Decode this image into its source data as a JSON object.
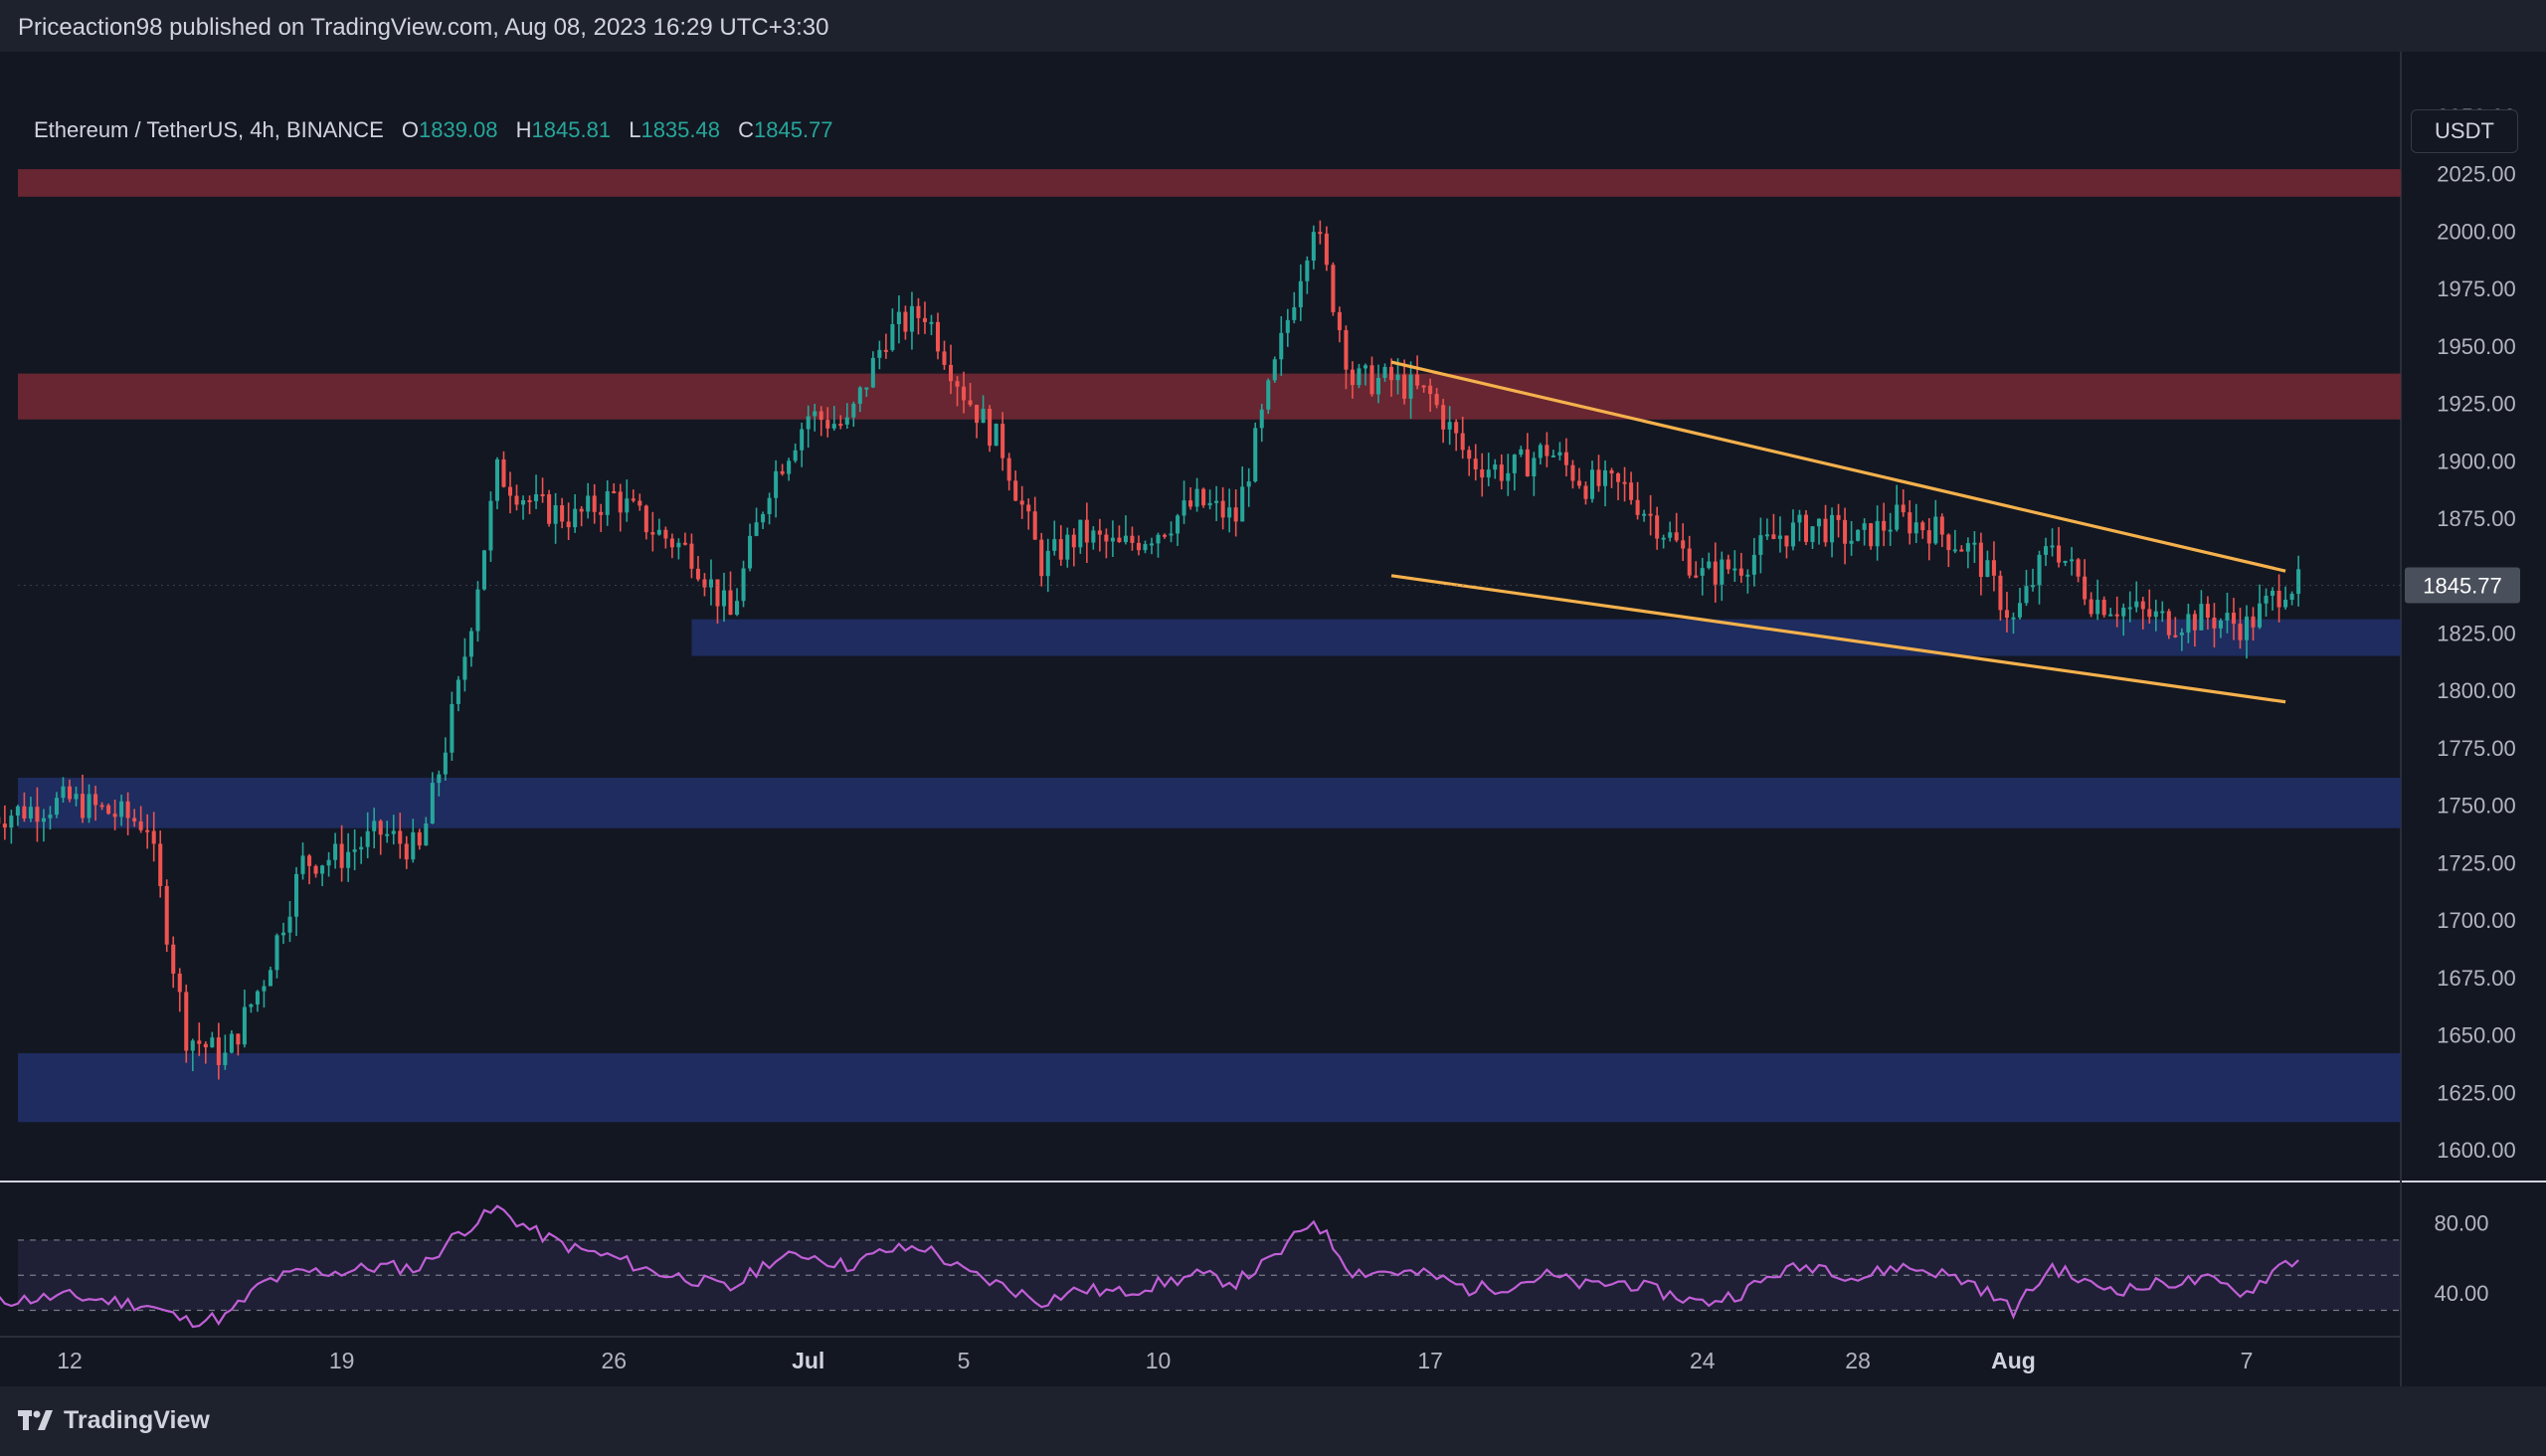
{
  "header": {
    "publish_text": "Priceaction98 published on TradingView.com, Aug 08, 2023 16:29 UTC+3:30"
  },
  "legend": {
    "symbol": "Ethereum / TetherUS, 4h, BINANCE",
    "open_label": "O",
    "open": "1839.08",
    "high_label": "H",
    "high": "1845.81",
    "low_label": "L",
    "low": "1835.48",
    "close_label": "C",
    "close": "1845.77"
  },
  "currency_button": "USDT",
  "footer": {
    "logo_text": "TradingView"
  },
  "colors": {
    "background": "#131722",
    "up": "#26a69a",
    "down": "#ef5350",
    "resistance_zone": "#6b2733",
    "support_zone": "#1f2d63",
    "channel_line": "#f5b14c",
    "rsi_line": "#c05fd6",
    "price_tag_bg": "#4a4f5c"
  },
  "chart_data": [
    {
      "type": "candlestick",
      "x_tick_labels": [
        "12",
        "19",
        "26",
        "Jul",
        "5",
        "10",
        "17",
        "24",
        "28",
        "Aug",
        "7"
      ],
      "y_tick_labels": [
        "2050.00",
        "2025.00",
        "2000.00",
        "1975.00",
        "1950.00",
        "1925.00",
        "1900.00",
        "1875.00",
        "1850.00",
        "1825.00",
        "1800.00",
        "1775.00",
        "1750.00",
        "1725.00",
        "1700.00",
        "1675.00",
        "1650.00",
        "1625.00",
        "1600.00"
      ],
      "ylim": [
        1590,
        2055
      ],
      "last_price_label": "1845.77",
      "last_price": 1845.77,
      "zones": [
        {
          "kind": "resistance",
          "from": 2015,
          "to": 2027
        },
        {
          "kind": "resistance",
          "from": 1918,
          "to": 1938
        },
        {
          "kind": "support",
          "from": 1815,
          "to": 1831,
          "start_date": "Jun 28"
        },
        {
          "kind": "support",
          "from": 1740,
          "to": 1762
        },
        {
          "kind": "support",
          "from": 1612,
          "to": 1642
        }
      ],
      "channel_lines": [
        {
          "from_date": "Jul 16",
          "from_price": 1943,
          "to_date": "Aug 8",
          "to_price": 1852
        },
        {
          "from_date": "Jul 16",
          "from_price": 1850,
          "to_date": "Aug 8",
          "to_price": 1795
        }
      ],
      "price_path": [
        [
          "Jun 10",
          1745
        ],
        [
          "Jun 12",
          1752
        ],
        [
          "Jun 14",
          1742
        ],
        [
          "Jun 15",
          1650
        ],
        [
          "Jun 16",
          1640
        ],
        [
          "Jun 17",
          1675
        ],
        [
          "Jun 18",
          1725
        ],
        [
          "Jun 19",
          1728
        ],
        [
          "Jun 20",
          1738
        ],
        [
          "Jun 21",
          1730
        ],
        [
          "Jun 22",
          1800
        ],
        [
          "Jun 23",
          1895
        ],
        [
          "Jun 24",
          1880
        ],
        [
          "Jun 25",
          1875
        ],
        [
          "Jun 26",
          1885
        ],
        [
          "Jun 27",
          1870
        ],
        [
          "Jun 28",
          1860
        ],
        [
          "Jun 29",
          1832
        ],
        [
          "Jun 30",
          1890
        ],
        [
          "Jul 1",
          1920
        ],
        [
          "Jul 2",
          1915
        ],
        [
          "Jul 3",
          1955
        ],
        [
          "Jul 4",
          1965
        ],
        [
          "Jul 5",
          1930
        ],
        [
          "Jul 6",
          1905
        ],
        [
          "Jul 7",
          1855
        ],
        [
          "Jul 8",
          1868
        ],
        [
          "Jul 9",
          1862
        ],
        [
          "Jul 10",
          1870
        ],
        [
          "Jul 11",
          1882
        ],
        [
          "Jul 12",
          1875
        ],
        [
          "Jul 13",
          1940
        ],
        [
          "Jul 14",
          2005
        ],
        [
          "Jul 15",
          1935
        ],
        [
          "Jul 16",
          1935
        ],
        [
          "Jul 17",
          1928
        ],
        [
          "Jul 18",
          1900
        ],
        [
          "Jul 19",
          1895
        ],
        [
          "Jul 20",
          1905
        ],
        [
          "Jul 21",
          1890
        ],
        [
          "Jul 22",
          1888
        ],
        [
          "Jul 23",
          1870
        ],
        [
          "Jul 24",
          1850
        ],
        [
          "Jul 25",
          1855
        ],
        [
          "Jul 26",
          1868
        ],
        [
          "Jul 27",
          1872
        ],
        [
          "Jul 28",
          1865
        ],
        [
          "Jul 29",
          1875
        ],
        [
          "Jul 30",
          1870
        ],
        [
          "Jul 31",
          1860
        ],
        [
          "Aug 1",
          1830
        ],
        [
          "Aug 2",
          1865
        ],
        [
          "Aug 3",
          1840
        ],
        [
          "Aug 4",
          1835
        ],
        [
          "Aug 5",
          1830
        ],
        [
          "Aug 6",
          1832
        ],
        [
          "Aug 7",
          1828
        ],
        [
          "Aug 8",
          1846
        ]
      ]
    },
    {
      "type": "line",
      "name": "RSI",
      "y_tick_labels": [
        "80.00",
        "40.00"
      ],
      "upper_band": 70,
      "lower_band": 30,
      "middle_band": 50,
      "ylim": [
        15,
        100
      ],
      "values_by_date": [
        [
          "Jun 10",
          35
        ],
        [
          "Jun 12",
          38
        ],
        [
          "Jun 14",
          33
        ],
        [
          "Jun 15",
          24
        ],
        [
          "Jun 16",
          26
        ],
        [
          "Jun 17",
          46
        ],
        [
          "Jun 18",
          52
        ],
        [
          "Jun 19",
          52
        ],
        [
          "Jun 20",
          55
        ],
        [
          "Jun 21",
          54
        ],
        [
          "Jun 22",
          74
        ],
        [
          "Jun 23",
          88
        ],
        [
          "Jun 24",
          74
        ],
        [
          "Jun 25",
          65
        ],
        [
          "Jun 26",
          60
        ],
        [
          "Jun 27",
          52
        ],
        [
          "Jun 28",
          48
        ],
        [
          "Jun 29",
          42
        ],
        [
          "Jun 30",
          58
        ],
        [
          "Jul 1",
          62
        ],
        [
          "Jul 2",
          55
        ],
        [
          "Jul 3",
          64
        ],
        [
          "Jul 4",
          66
        ],
        [
          "Jul 5",
          52
        ],
        [
          "Jul 6",
          44
        ],
        [
          "Jul 7",
          35
        ],
        [
          "Jul 8",
          42
        ],
        [
          "Jul 9",
          40
        ],
        [
          "Jul 10",
          45
        ],
        [
          "Jul 11",
          50
        ],
        [
          "Jul 12",
          46
        ],
        [
          "Jul 13",
          60
        ],
        [
          "Jul 14",
          82
        ],
        [
          "Jul 15",
          52
        ],
        [
          "Jul 16",
          52
        ],
        [
          "Jul 17",
          50
        ],
        [
          "Jul 18",
          42
        ],
        [
          "Jul 19",
          44
        ],
        [
          "Jul 20",
          50
        ],
        [
          "Jul 21",
          44
        ],
        [
          "Jul 22",
          46
        ],
        [
          "Jul 23",
          40
        ],
        [
          "Jul 24",
          34
        ],
        [
          "Jul 25",
          40
        ],
        [
          "Jul 26",
          52
        ],
        [
          "Jul 27",
          56
        ],
        [
          "Jul 28",
          48
        ],
        [
          "Jul 29",
          55
        ],
        [
          "Jul 30",
          52
        ],
        [
          "Jul 31",
          45
        ],
        [
          "Aug 1",
          30
        ],
        [
          "Aug 2",
          55
        ],
        [
          "Aug 3",
          44
        ],
        [
          "Aug 4",
          42
        ],
        [
          "Aug 5",
          46
        ],
        [
          "Aug 6",
          47
        ],
        [
          "Aug 7",
          40
        ],
        [
          "Aug 8",
          58
        ]
      ]
    }
  ]
}
